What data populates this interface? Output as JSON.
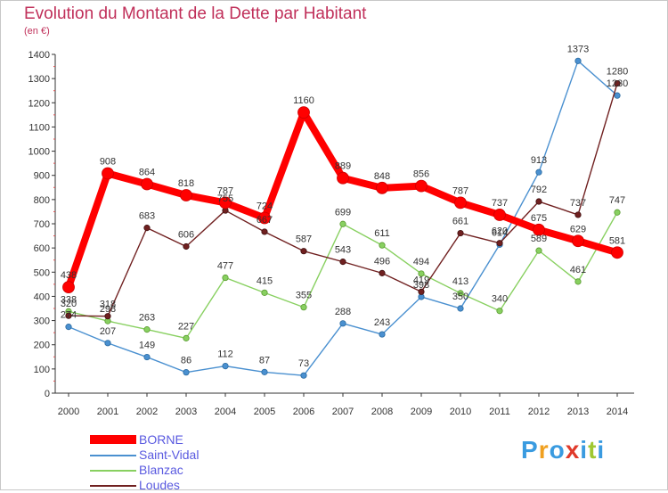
{
  "header": {
    "title": "Evolution du Montant de la Dette par Habitant",
    "subtitle": "(en €)"
  },
  "brand": {
    "text": "Proxiti",
    "letter_colors": [
      "#3a9be0",
      "#f0a020",
      "#3a9be0",
      "#e03a2a",
      "#3a9be0",
      "#a0c830",
      "#3a9be0"
    ]
  },
  "chart_data": {
    "type": "line",
    "title": "Evolution du Montant de la Dette par Habitant",
    "ylabel": "(en €)",
    "xlabel": "",
    "x": [
      "2000",
      "2001",
      "2002",
      "2003",
      "2004",
      "2005",
      "2006",
      "2007",
      "2008",
      "2009",
      "2010",
      "2011",
      "2012",
      "2013",
      "2014"
    ],
    "ylim": [
      0,
      1400
    ],
    "yticks": [
      "0",
      "100",
      "200",
      "300",
      "400",
      "500",
      "600",
      "700",
      "800",
      "900",
      "1000",
      "1100",
      "1200",
      "1300",
      "1400"
    ],
    "grid": false,
    "legend": "bottom-left",
    "series": [
      {
        "name": "BORNE",
        "color": "#ff0000",
        "values": [
          438,
          908,
          864,
          818,
          787,
          724,
          1160,
          889,
          848,
          856,
          787,
          737,
          675,
          629,
          581
        ],
        "labels": [
          "438",
          "908",
          "864",
          "818",
          "787",
          "724",
          "1160",
          "889",
          "848",
          "856",
          "787",
          "737",
          "675",
          "629",
          "581"
        ]
      },
      {
        "name": "Saint-Vidal",
        "color": "#4a90d0",
        "values": [
          274,
          207,
          149,
          86,
          112,
          87,
          73,
          288,
          243,
          398,
          350,
          614,
          913,
          1373,
          1230
        ],
        "labels": [
          "274",
          "207",
          "149",
          "86",
          "112",
          "87",
          "73",
          "288",
          "243",
          "398",
          "350",
          "614",
          "913",
          "1373",
          "1230"
        ]
      },
      {
        "name": "Blanzac",
        "color": "#88d060",
        "values": [
          338,
          298,
          263,
          227,
          477,
          415,
          355,
          699,
          611,
          494,
          413,
          340,
          589,
          461,
          747
        ],
        "labels": [
          "338",
          "298",
          "263",
          "227",
          "477",
          "415",
          "355",
          "699",
          "611",
          "494",
          "413",
          "340",
          "589",
          "461",
          "747"
        ]
      },
      {
        "name": "Loudes",
        "color": "#702020",
        "values": [
          320,
          318,
          683,
          606,
          755,
          667,
          587,
          543,
          496,
          419,
          661,
          620,
          792,
          737,
          1280
        ],
        "labels": [
          "320",
          "318",
          "683",
          "606",
          "755",
          "667",
          "587",
          "543",
          "496",
          "419",
          "661",
          "620",
          "792",
          "737",
          "1280"
        ]
      }
    ]
  }
}
